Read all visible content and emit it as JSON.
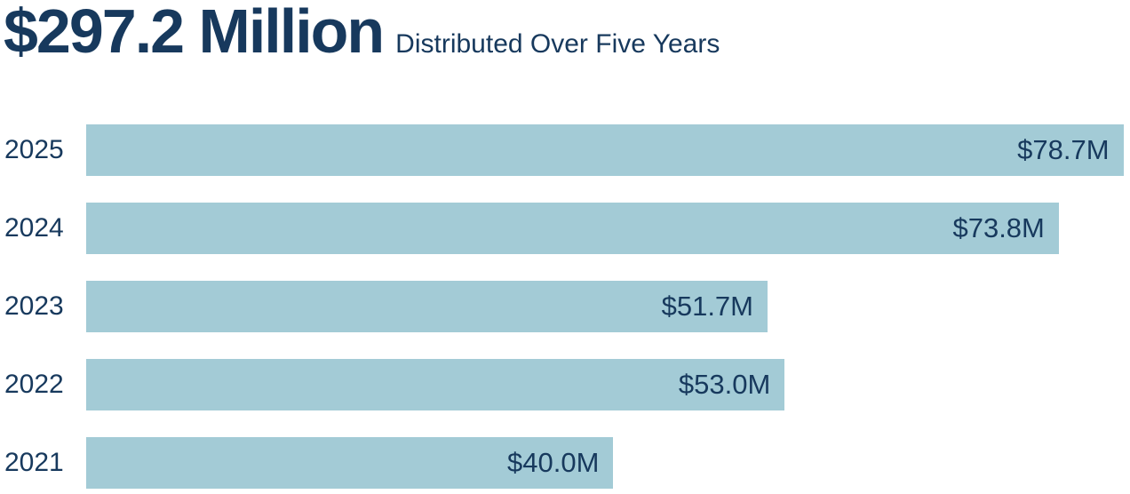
{
  "header": {
    "title": "$297.2 Million",
    "subtitle": "Distributed Over Five Years"
  },
  "colors": {
    "navy": "#17395D",
    "bar_blue": "#A3CBD6",
    "background": "#FFFFFF"
  },
  "chart_data": {
    "type": "bar",
    "orientation": "horizontal",
    "title": "$297.2 Million Distributed Over Five Years",
    "total_label": "$297.2 Million",
    "total_value": 297.2,
    "categories": [
      "2025",
      "2024",
      "2023",
      "2022",
      "2021"
    ],
    "values": [
      78.7,
      73.8,
      51.7,
      53.0,
      40.0
    ],
    "value_labels": [
      "$78.7M",
      "$73.8M",
      "$51.7M",
      "$53.0M",
      "$40.0M"
    ],
    "xlim": [
      0,
      79.2
    ],
    "grid": false,
    "legend": false,
    "rows": [
      {
        "year": "2025",
        "value": 78.7,
        "label": "$78.7M"
      },
      {
        "year": "2024",
        "value": 73.8,
        "label": "$73.8M"
      },
      {
        "year": "2023",
        "value": 51.7,
        "label": "$51.7M"
      },
      {
        "year": "2022",
        "value": 53.0,
        "label": "$53.0M"
      },
      {
        "year": "2021",
        "value": 40.0,
        "label": "$40.0M"
      }
    ]
  }
}
